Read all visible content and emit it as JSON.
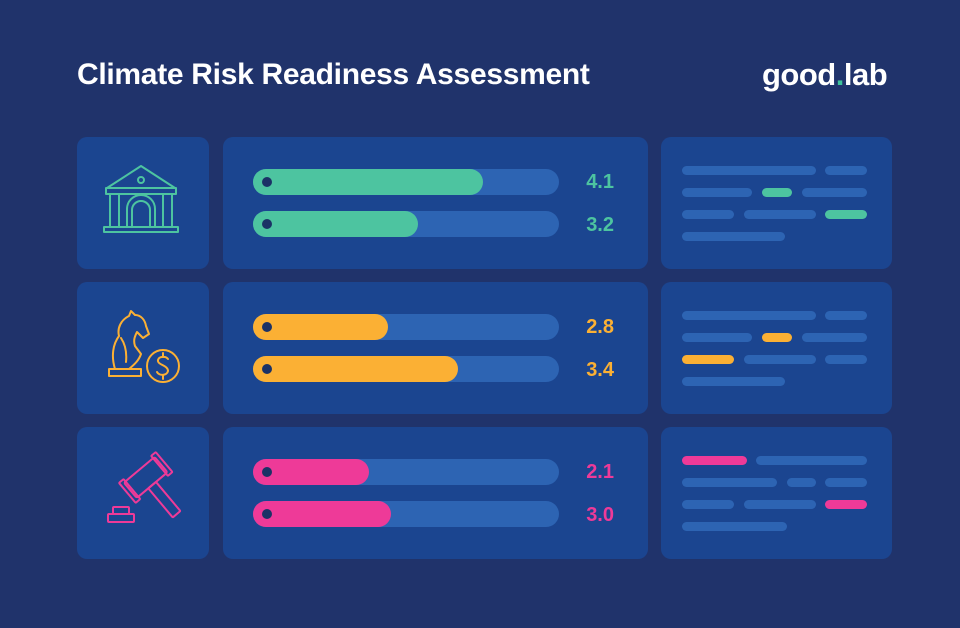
{
  "header": {
    "title": "Climate Risk Readiness Assessment",
    "logo_text": "good",
    "logo_dot": ".",
    "logo_text2": "lab"
  },
  "colors": {
    "background": "#20336b",
    "card": "#1b4590",
    "track": "#2d64b3",
    "green": "#4dc4a0",
    "yellow": "#fbb034",
    "pink": "#ee3a98"
  },
  "rows": [
    {
      "icon": "bank-building-icon",
      "color": "#4dc4a0",
      "bars": [
        {
          "value": "4.1",
          "fill": 0.75
        },
        {
          "value": "3.2",
          "fill": 0.54
        }
      ]
    },
    {
      "icon": "chess-knight-dollar-icon",
      "color": "#fbb034",
      "bars": [
        {
          "value": "2.8",
          "fill": 0.44
        },
        {
          "value": "3.4",
          "fill": 0.67
        }
      ]
    },
    {
      "icon": "gavel-icon",
      "color": "#ee3a98",
      "bars": [
        {
          "value": "2.1",
          "fill": 0.38
        },
        {
          "value": "3.0",
          "fill": 0.45
        }
      ]
    }
  ]
}
